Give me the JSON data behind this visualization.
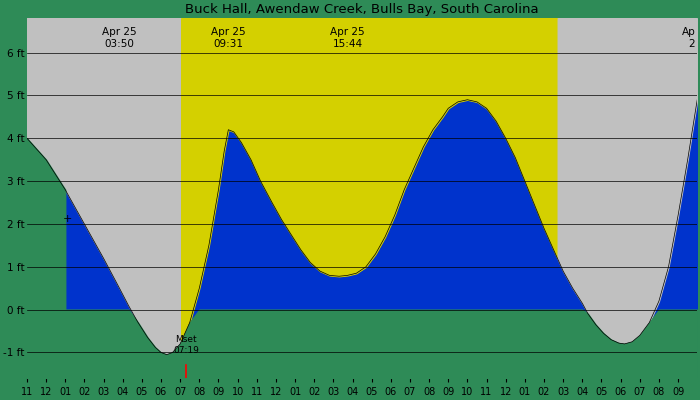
{
  "title": "Buck Hall, Awendaw Creek, Bulls Bay, South Carolina",
  "bg_night_color": "#c0c0c0",
  "bg_day_color": "#d4d000",
  "tide_blue": "#0033cc",
  "tide_green": "#2e8b57",
  "y_min": -1.6,
  "y_max": 6.8,
  "yticks": [
    -1,
    0,
    1,
    2,
    3,
    4,
    5,
    6
  ],
  "ytick_labels": [
    "-1 ft",
    "0 ft",
    "1 ft",
    "2 ft",
    "3 ft",
    "4 ft",
    "5 ft",
    "6 ft"
  ],
  "day_start_x": 7.05,
  "day_end_x": 26.7,
  "annotations": [
    {
      "label": "Apr 25\n03:50",
      "x": 3.833
    },
    {
      "label": "Apr 25\n09:31",
      "x": 9.517
    },
    {
      "label": "Apr 25\n15:44",
      "x": 15.733
    },
    {
      "label": "Ap\n2",
      "x": 33.3
    }
  ],
  "moonset_label": "Mset\n07:19",
  "moonset_x": 7.32,
  "tide_points": [
    [
      -1.0,
      4.0
    ],
    [
      0.0,
      3.5
    ],
    [
      1.0,
      2.8
    ],
    [
      2.0,
      2.0
    ],
    [
      3.0,
      1.2
    ],
    [
      3.833,
      0.5
    ],
    [
      4.3,
      0.1
    ],
    [
      4.8,
      -0.3
    ],
    [
      5.3,
      -0.65
    ],
    [
      5.7,
      -0.88
    ],
    [
      6.0,
      -1.0
    ],
    [
      6.3,
      -1.05
    ],
    [
      6.6,
      -1.0
    ],
    [
      7.0,
      -0.8
    ],
    [
      7.5,
      -0.3
    ],
    [
      8.0,
      0.5
    ],
    [
      8.5,
      1.5
    ],
    [
      9.0,
      2.8
    ],
    [
      9.3,
      3.7
    ],
    [
      9.517,
      4.2
    ],
    [
      9.8,
      4.15
    ],
    [
      10.2,
      3.9
    ],
    [
      10.7,
      3.5
    ],
    [
      11.2,
      3.0
    ],
    [
      11.8,
      2.5
    ],
    [
      12.3,
      2.1
    ],
    [
      12.8,
      1.75
    ],
    [
      13.3,
      1.4
    ],
    [
      13.8,
      1.1
    ],
    [
      14.3,
      0.9
    ],
    [
      14.8,
      0.8
    ],
    [
      15.3,
      0.78
    ],
    [
      15.733,
      0.8
    ],
    [
      16.2,
      0.85
    ],
    [
      16.7,
      1.0
    ],
    [
      17.2,
      1.3
    ],
    [
      17.7,
      1.7
    ],
    [
      18.2,
      2.2
    ],
    [
      18.7,
      2.8
    ],
    [
      19.2,
      3.3
    ],
    [
      19.7,
      3.8
    ],
    [
      20.2,
      4.2
    ],
    [
      20.7,
      4.5
    ],
    [
      21.0,
      4.7
    ],
    [
      21.5,
      4.85
    ],
    [
      22.0,
      4.9
    ],
    [
      22.5,
      4.85
    ],
    [
      23.0,
      4.7
    ],
    [
      23.5,
      4.4
    ],
    [
      24.0,
      4.0
    ],
    [
      24.5,
      3.55
    ],
    [
      25.0,
      3.0
    ],
    [
      25.5,
      2.45
    ],
    [
      26.0,
      1.9
    ],
    [
      26.5,
      1.4
    ],
    [
      26.7,
      1.2
    ],
    [
      27.0,
      0.9
    ],
    [
      27.5,
      0.5
    ],
    [
      28.0,
      0.15
    ],
    [
      28.3,
      -0.1
    ],
    [
      28.7,
      -0.35
    ],
    [
      29.1,
      -0.55
    ],
    [
      29.5,
      -0.7
    ],
    [
      29.9,
      -0.78
    ],
    [
      30.2,
      -0.8
    ],
    [
      30.6,
      -0.75
    ],
    [
      31.0,
      -0.6
    ],
    [
      31.5,
      -0.3
    ],
    [
      32.0,
      0.2
    ],
    [
      32.5,
      1.0
    ],
    [
      33.0,
      2.2
    ],
    [
      33.5,
      3.5
    ],
    [
      34.0,
      4.9
    ]
  ],
  "x_min": -1.0,
  "x_max": 34.0,
  "xtick_positions": [
    -1,
    0,
    1,
    2,
    3,
    4,
    5,
    6,
    7,
    8,
    9,
    10,
    11,
    12,
    13,
    14,
    15,
    16,
    17,
    18,
    19,
    20,
    21,
    22,
    23,
    24,
    25,
    26,
    27,
    28,
    29,
    30,
    31,
    32,
    33
  ],
  "xtick_labels": [
    "11",
    "12",
    "01",
    "02",
    "03",
    "04",
    "05",
    "06",
    "07",
    "08",
    "09",
    "10",
    "11",
    "12",
    "01",
    "02",
    "03",
    "04",
    "05",
    "06",
    "07",
    "08",
    "09",
    "10",
    "11",
    "12",
    "01",
    "02",
    "03",
    "04",
    "05",
    "06",
    "07",
    "08",
    "09"
  ]
}
